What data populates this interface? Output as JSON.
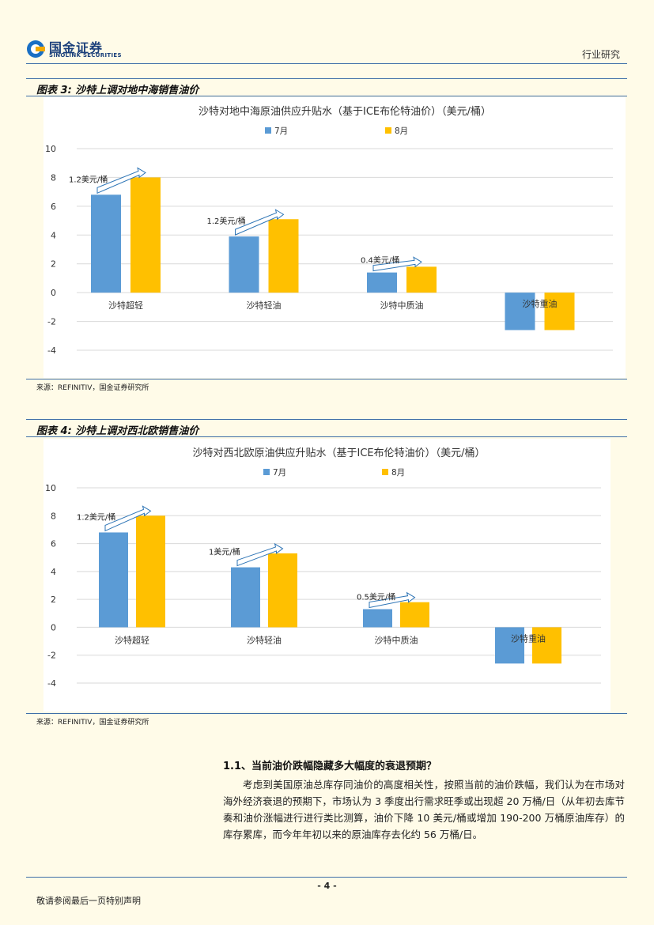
{
  "header": {
    "logo_cn": "国金证券",
    "logo_en": "SINOLINK SECURITIES",
    "right_text": "行业研究"
  },
  "figures": [
    {
      "label": "图表 3:  沙特上调对地中海销售油价",
      "source": "来源：REFINITIV，国金证券研究所"
    },
    {
      "label": "图表 4:  沙特上调对西北欧销售油价",
      "source": "来源：REFINITIV，国金证券研究所"
    }
  ],
  "chart_data": [
    {
      "type": "bar",
      "title": "沙特对地中海原油供应升贴水（基于ICE布伦特油价）（美元/桶）",
      "categories": [
        "沙特超轻",
        "沙特轻油",
        "沙特中质油",
        "沙特重油"
      ],
      "series": [
        {
          "name": "7月",
          "values": [
            6.8,
            3.9,
            1.4,
            -2.6
          ],
          "color": "#5b9bd5"
        },
        {
          "name": "8月",
          "values": [
            8.0,
            5.1,
            1.8,
            -2.6
          ],
          "color": "#ffc000"
        }
      ],
      "ylim": [
        -4,
        10
      ],
      "yticks": [
        10,
        8,
        6,
        4,
        2,
        0,
        -2,
        -4
      ],
      "ytick_labels": [
        "10",
        "8",
        "6",
        "4",
        "2",
        "0",
        "-2",
        "-4"
      ],
      "annotations": [
        "1.2美元/桶",
        "1.2美元/桶",
        "0.4美元/桶"
      ],
      "grid": true,
      "legend": "top-center"
    },
    {
      "type": "bar",
      "title": "沙特对西北欧原油供应升贴水（基于ICE布伦特油价）（美元/桶）",
      "categories": [
        "沙特超轻",
        "沙特轻油",
        "沙特中质油",
        "沙特重油"
      ],
      "series": [
        {
          "name": "7月",
          "values": [
            6.8,
            4.3,
            1.3,
            -2.6
          ],
          "color": "#5b9bd5"
        },
        {
          "name": "8月",
          "values": [
            8.0,
            5.3,
            1.8,
            -2.6
          ],
          "color": "#ffc000"
        }
      ],
      "ylim": [
        -4,
        10
      ],
      "yticks": [
        10,
        8,
        6,
        4,
        2,
        0,
        -2,
        -4
      ],
      "ytick_labels": [
        "10",
        "8",
        "6",
        "4",
        "2",
        "0",
        "-2",
        "-4"
      ],
      "annotations": [
        "1.2美元/桶",
        "1美元/桶",
        "0.5美元/桶"
      ],
      "grid": true,
      "legend": "top-center"
    }
  ],
  "section": {
    "heading": "1.1、当前油价跌幅隐藏多大幅度的衰退预期？",
    "paragraph": "考虑到美国原油总库存同油价的高度相关性，按照当前的油价跌幅，我们认为在市场对海外经济衰退的预期下，市场认为 3 季度出行需求旺季或出现超 20 万桶/日（从年初去库节奏和油价涨幅进行进行类比测算，油价下降 10 美元/桶或增加 190-200 万桶原油库存）的库存累库，而今年年初以来的原油库存去化约 56 万桶/日。"
  },
  "footer": {
    "page_number": "- 4 -",
    "disclaimer": "敬请参阅最后一页特别声明"
  }
}
